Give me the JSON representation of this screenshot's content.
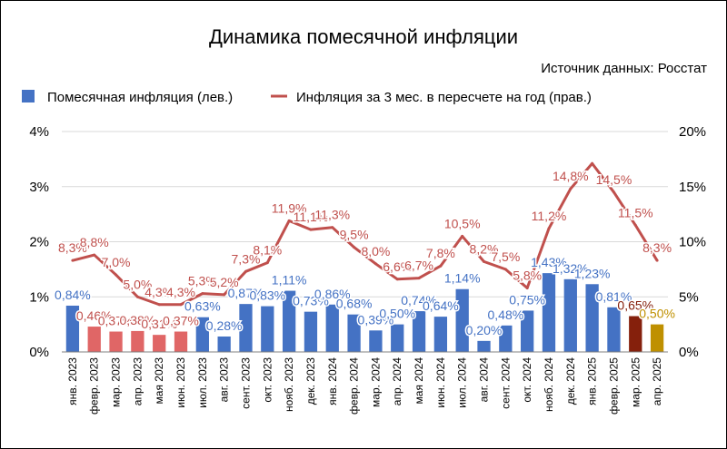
{
  "chart_data": {
    "type": "bar+line",
    "title": "Динамика помесячной инфляции",
    "source": "Источник данных: Росстат",
    "legend_position": "top-left",
    "grid": true,
    "categories": [
      "янв. 2023",
      "февр. 2023",
      "мар. 2023",
      "апр. 2023",
      "мая 2023",
      "июн. 2023",
      "июл. 2023",
      "авг. 2023",
      "сент. 2023",
      "окт. 2023",
      "нояб. 2023",
      "дек. 2023",
      "янв. 2024",
      "февр. 2024",
      "мар. 2024",
      "апр. 2024",
      "мая 2024",
      "июн. 2024",
      "июл. 2024",
      "авг. 2024",
      "сент. 2024",
      "окт. 2024",
      "нояб. 2024",
      "дек. 2024",
      "янв. 2025",
      "февр. 2025",
      "мар. 2025",
      "апр. 2025"
    ],
    "y_left": {
      "ylim": [
        0,
        4
      ],
      "ticks": [
        "0%",
        "1%",
        "2%",
        "3%",
        "4%"
      ]
    },
    "y_right": {
      "ylim": [
        0,
        20
      ],
      "ticks": [
        "0%",
        "5%",
        "10%",
        "15%",
        "20%"
      ]
    },
    "series": [
      {
        "name": "Помесячная инфляция (лев.)",
        "kind": "bar",
        "axis": "left",
        "color": "#4472C4",
        "values": [
          0.84,
          0.46,
          0.37,
          0.38,
          0.31,
          0.37,
          0.63,
          0.28,
          0.87,
          0.83,
          1.11,
          0.73,
          0.86,
          0.68,
          0.39,
          0.5,
          0.74,
          0.64,
          1.14,
          0.2,
          0.48,
          0.75,
          1.43,
          1.32,
          1.23,
          0.81,
          0.65,
          0.5
        ],
        "labels": [
          "0,84%",
          "0,46%",
          "0,37%",
          "0,38%",
          "0,31%",
          "0,37%",
          "0,63%",
          "0,28%",
          "0,87%",
          "0,83%",
          "1,11%",
          "0,73%",
          "0,86%",
          "0,68%",
          "0,39%",
          "0,50%",
          "0,74%",
          "0,64%",
          "1,14%",
          "0,20%",
          "0,48%",
          "0,75%",
          "1,43%",
          "1,32%",
          "1,23%",
          "0,81%",
          "0,65%",
          "0,50%"
        ],
        "bar_colors": [
          "#4472C4",
          "#E06666",
          "#E06666",
          "#E06666",
          "#E06666",
          "#E06666",
          "#4472C4",
          "#4472C4",
          "#4472C4",
          "#4472C4",
          "#4472C4",
          "#4472C4",
          "#4472C4",
          "#4472C4",
          "#4472C4",
          "#4472C4",
          "#4472C4",
          "#4472C4",
          "#4472C4",
          "#4472C4",
          "#4472C4",
          "#4472C4",
          "#4472C4",
          "#4472C4",
          "#4472C4",
          "#4472C4",
          "#85200C",
          "#BF9000"
        ],
        "label_colors": [
          "#4472C4",
          "#C0504D",
          "#C0504D",
          "#C0504D",
          "#C0504D",
          "#C0504D",
          "#4472C4",
          "#4472C4",
          "#4472C4",
          "#4472C4",
          "#4472C4",
          "#4472C4",
          "#4472C4",
          "#4472C4",
          "#4472C4",
          "#4472C4",
          "#4472C4",
          "#4472C4",
          "#4472C4",
          "#4472C4",
          "#4472C4",
          "#4472C4",
          "#4472C4",
          "#4472C4",
          "#4472C4",
          "#4472C4",
          "#85200C",
          "#BF9000"
        ]
      },
      {
        "name": "Инфляция за 3 мес. в пересчете на год (прав.)",
        "kind": "line",
        "axis": "right",
        "color": "#C0504D",
        "values": [
          8.3,
          8.8,
          7.0,
          5.0,
          4.3,
          4.3,
          5.3,
          5.2,
          7.3,
          8.1,
          11.9,
          11.1,
          11.3,
          9.5,
          8.0,
          6.6,
          6.7,
          7.8,
          10.5,
          8.2,
          7.5,
          5.8,
          11.2,
          14.8,
          17.1,
          14.5,
          11.5,
          8.3
        ],
        "labels": [
          "8,3%",
          "8,8%",
          "7,0%",
          "5,0%",
          "4,3%",
          "4,3%",
          "5,3%",
          "5,2%",
          "7,3%",
          "8,1%",
          "11,9%",
          "11,1%",
          "11,3%",
          "9,5%",
          "8,0%",
          "6,6%",
          "6,7%",
          "7,8%",
          "10,5%",
          "8,2%",
          "7,5%",
          "5,8%",
          "11,2%",
          "14,8%",
          "",
          "14,5%",
          "11,5%",
          "8,3%"
        ]
      }
    ]
  }
}
